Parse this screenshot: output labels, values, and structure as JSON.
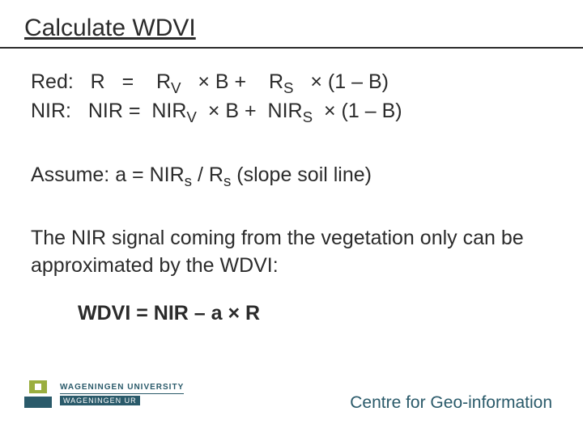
{
  "title": "Calculate WDVI",
  "equations": {
    "red_label": "Red:",
    "red_lhs": "R",
    "red_eq": "=",
    "red_t1": "R",
    "red_t1_sub": "V",
    "red_mul1": "× B +",
    "red_t2": "R",
    "red_t2_sub": "S",
    "red_mul2": "×  (1 – B)",
    "nir_label": "NIR:",
    "nir_lhs": "NIR =",
    "nir_t1": "NIR",
    "nir_t1_sub": "V",
    "nir_mul1": "× B +",
    "nir_t2": "NIR",
    "nir_t2_sub": "S",
    "nir_mul2": "×  (1 – B)"
  },
  "assume": {
    "prefix": "Assume:  a = NIR",
    "sub1": "s",
    "mid": " / R",
    "sub2": "s",
    "suffix": "   (slope soil line)"
  },
  "paragraph": "The NIR signal coming from the vegetation only can be approximated by the WDVI:",
  "formula": "WDVI = NIR – a × R",
  "footer": {
    "logo_line1": "WAGENINGEN UNIVERSITY",
    "logo_line2": "WAGENINGEN UR",
    "centre": "Centre for Geo-information"
  },
  "colors": {
    "text": "#2b2b2b",
    "brand": "#2a5a6a",
    "accent": "#9aae3f",
    "background": "#ffffff"
  }
}
